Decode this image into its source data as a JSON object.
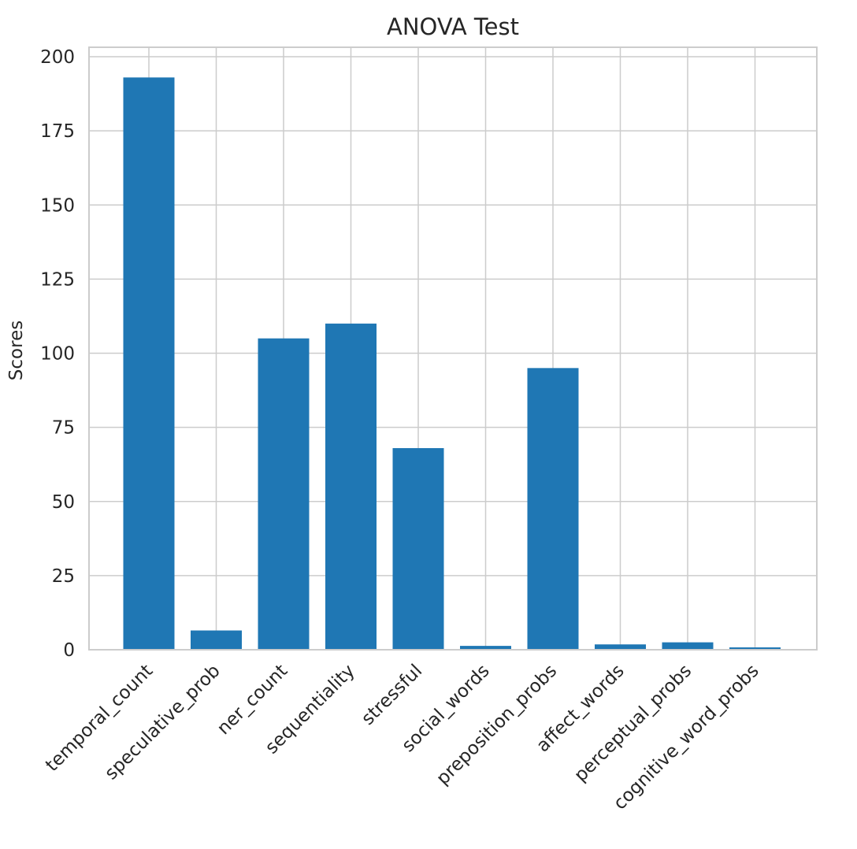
{
  "chart_data": {
    "type": "bar",
    "title": "ANOVA Test",
    "xlabel": "",
    "ylabel": "Scores",
    "categories": [
      "temporal_count",
      "speculative_prob",
      "ner_count",
      "sequentiality",
      "stressful",
      "social_words",
      "preposition_probs",
      "affect_words",
      "perceptual_probs",
      "cognitive_word_probs"
    ],
    "values": [
      193,
      6.5,
      105,
      110,
      68,
      1.3,
      95,
      1.8,
      2.5,
      0.8
    ],
    "ylim": [
      0,
      200
    ],
    "yticks": [
      0,
      25,
      50,
      75,
      100,
      125,
      150,
      175,
      200
    ],
    "grid": true,
    "bar_color": "#1f77b4",
    "grid_color": "#cccccc",
    "frame_color": "#cccccc"
  }
}
